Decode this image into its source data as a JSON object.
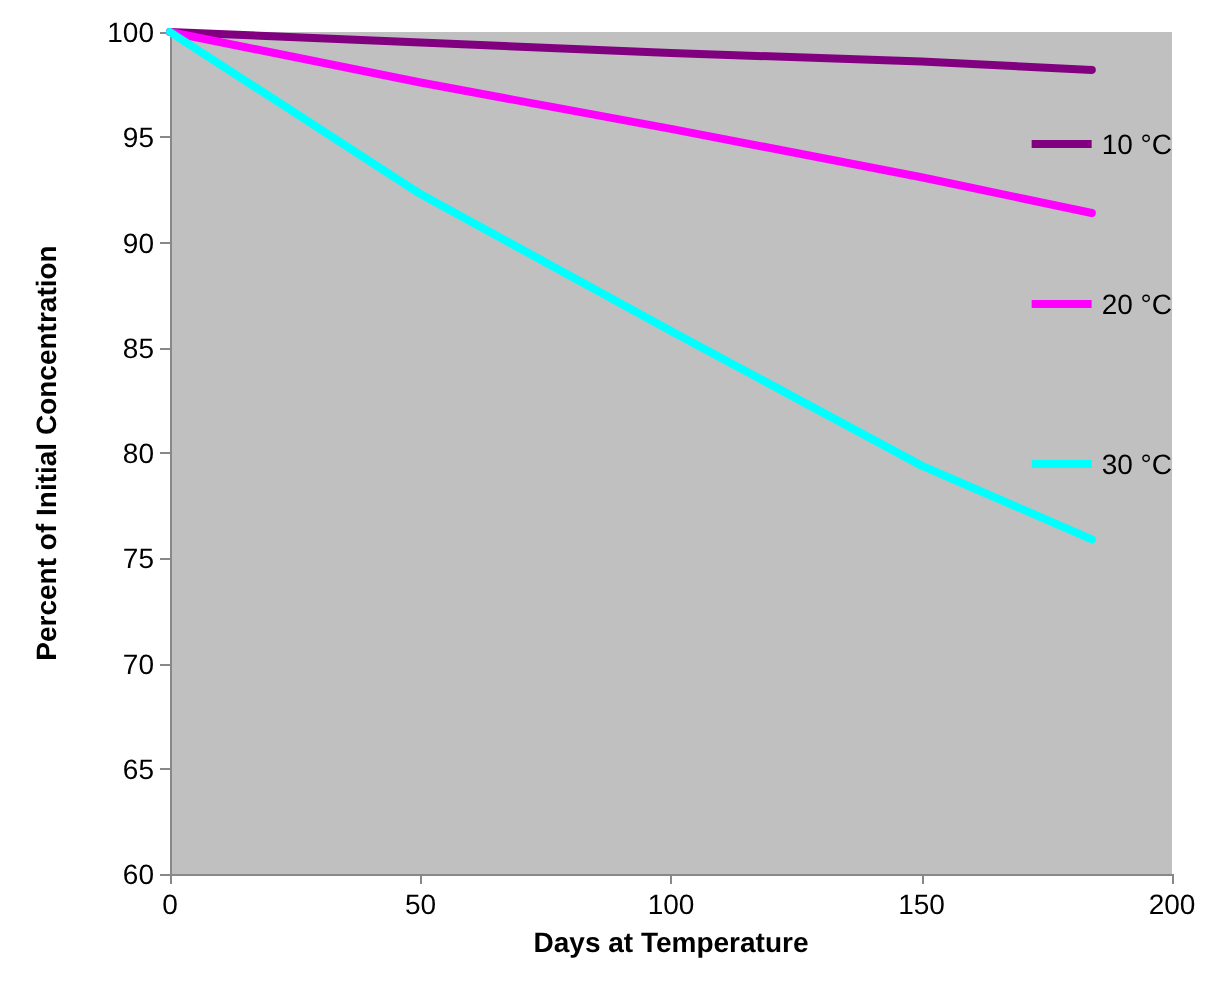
{
  "chart_data": {
    "type": "line",
    "xlabel": "Days at Temperature",
    "ylabel": "Percent of Initial Concentration",
    "x": [
      0,
      50,
      100,
      150,
      184
    ],
    "series": [
      {
        "name": "10 °C",
        "color": "#800080",
        "values": [
          100,
          99.5,
          99.0,
          98.6,
          98.2
        ]
      },
      {
        "name": "20 °C",
        "color": "#ff00ff",
        "values": [
          100,
          97.6,
          95.4,
          93.1,
          91.4
        ]
      },
      {
        "name": "30 °C",
        "color": "#00ffff",
        "values": [
          100,
          92.3,
          85.8,
          79.4,
          75.9
        ]
      }
    ],
    "xlim": [
      0,
      200
    ],
    "xticks": [
      0,
      50,
      100,
      150,
      200
    ],
    "ylim": [
      60,
      100
    ],
    "yticks": [
      60,
      65,
      70,
      75,
      80,
      85,
      90,
      95,
      100
    ],
    "grid": false,
    "legend": "right",
    "marker": "none",
    "line_style": "solid"
  }
}
